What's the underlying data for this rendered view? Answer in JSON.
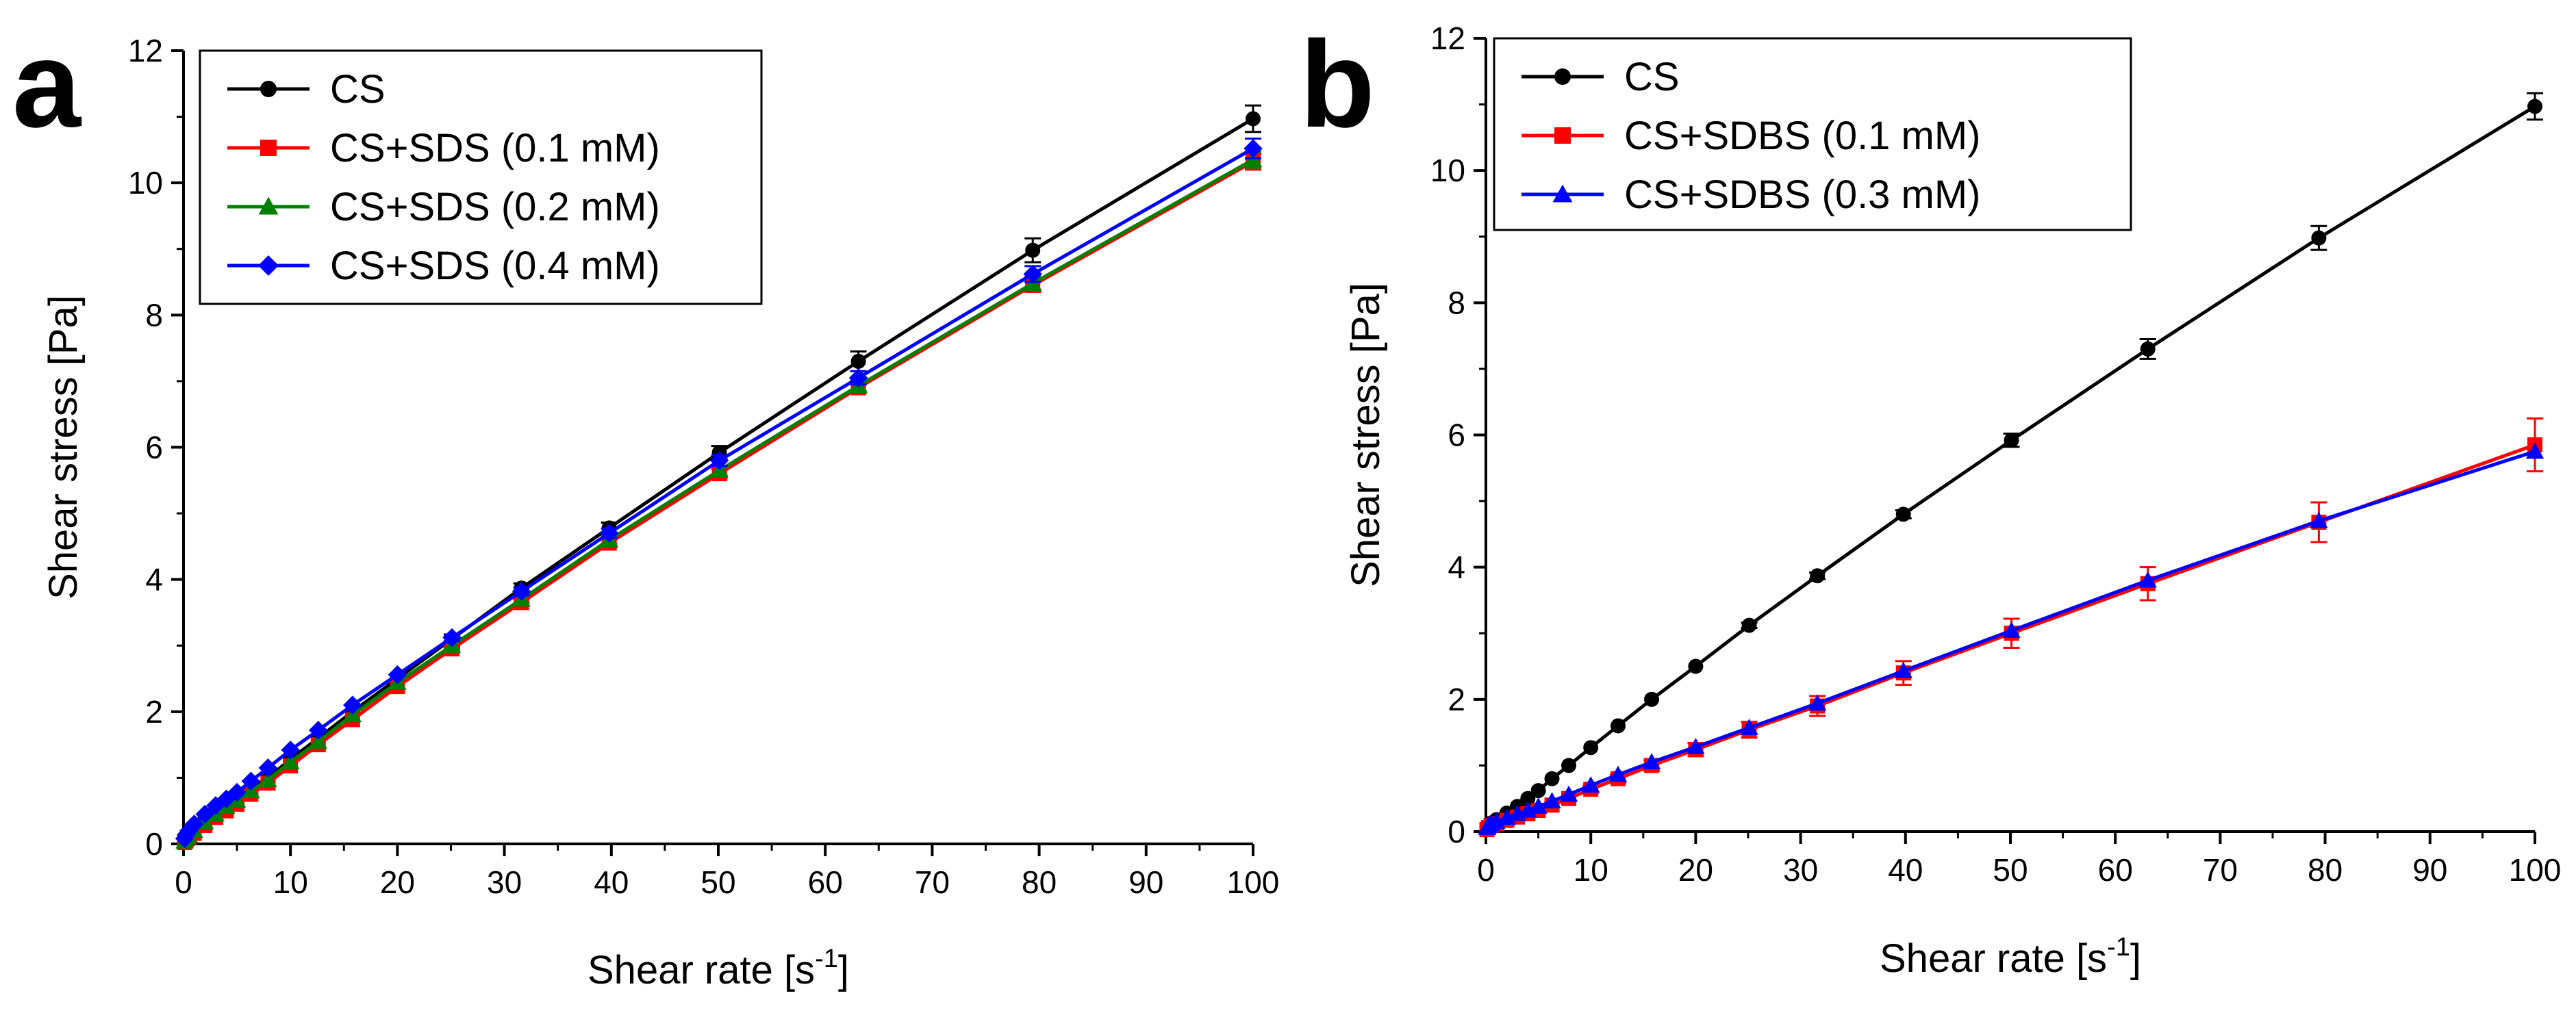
{
  "chart_data": [
    {
      "panel": "a",
      "type": "line",
      "title": "",
      "xlabel": "Shear rate [s",
      "xlabel_sup": "-1",
      "xlabel_end": "]",
      "ylabel": "Shear stress [Pa]",
      "xlim": [
        0,
        100
      ],
      "ylim": [
        0,
        12
      ],
      "xticks": [
        0,
        10,
        20,
        30,
        40,
        50,
        60,
        70,
        80,
        90,
        100
      ],
      "yticks": [
        0,
        2,
        4,
        6,
        8,
        10,
        12
      ],
      "legend_position": "top-left",
      "x": [
        0.1,
        0.16,
        0.25,
        0.4,
        0.63,
        1.0,
        1.58,
        2.51,
        3.98,
        6.31,
        10,
        15.8,
        25.1,
        39.8,
        50,
        63.1,
        79.4,
        100
      ],
      "series": [
        {
          "name": "CS",
          "color": "#000000",
          "marker": "circle",
          "x": [
            0.1,
            0.25,
            0.5,
            1,
            2,
            3,
            4,
            5,
            6.3,
            7.9,
            10,
            12.6,
            15.8,
            20,
            25.1,
            31.6,
            39.8,
            50.1,
            63.1,
            79.4,
            100
          ],
          "values": [
            0.05,
            0.1,
            0.16,
            0.24,
            0.38,
            0.5,
            0.6,
            0.7,
            0.85,
            1.0,
            1.28,
            1.6,
            2.0,
            2.5,
            3.1,
            3.87,
            4.78,
            5.92,
            7.3,
            8.98,
            10.97
          ],
          "errors": [
            0,
            0,
            0,
            0,
            0,
            0,
            0,
            0,
            0,
            0,
            0,
            0,
            0,
            0,
            0.05,
            0.07,
            0.08,
            0.1,
            0.15,
            0.18,
            0.2
          ]
        },
        {
          "name": "CS+SDS (0.1 mM)",
          "color": "#ff0000",
          "marker": "square",
          "x": [
            0.1,
            0.25,
            0.5,
            1,
            2,
            3,
            4,
            5,
            6.3,
            7.9,
            10,
            12.6,
            15.8,
            20,
            25.1,
            31.6,
            39.8,
            50.1,
            63.1,
            79.4,
            100
          ],
          "values": [
            0.02,
            0.06,
            0.1,
            0.16,
            0.28,
            0.4,
            0.5,
            0.6,
            0.75,
            0.92,
            1.18,
            1.5,
            1.88,
            2.38,
            2.95,
            3.65,
            4.55,
            5.6,
            6.9,
            8.45,
            10.32
          ],
          "errors": [
            0,
            0,
            0,
            0,
            0,
            0,
            0,
            0,
            0,
            0,
            0,
            0,
            0,
            0,
            0.04,
            0.05,
            0.06,
            0.07,
            0.08,
            0.1,
            0.12
          ]
        },
        {
          "name": "CS+SDS (0.2 mM)",
          "color": "#008000",
          "marker": "triangle",
          "x": [
            0.1,
            0.25,
            0.5,
            1,
            2,
            3,
            4,
            5,
            6.3,
            7.9,
            10,
            12.6,
            15.8,
            20,
            25.1,
            31.6,
            39.8,
            50.1,
            63.1,
            79.4,
            100
          ],
          "values": [
            0.04,
            0.08,
            0.13,
            0.2,
            0.33,
            0.45,
            0.56,
            0.66,
            0.8,
            0.97,
            1.24,
            1.55,
            1.95,
            2.44,
            3.0,
            3.7,
            4.6,
            5.65,
            6.93,
            8.48,
            10.35
          ],
          "errors": [
            0,
            0,
            0,
            0,
            0,
            0,
            0,
            0,
            0,
            0,
            0,
            0,
            0,
            0,
            0.04,
            0.05,
            0.06,
            0.07,
            0.08,
            0.1,
            0.12
          ]
        },
        {
          "name": "CS+SDS (0.4 mM)",
          "color": "#0000ff",
          "marker": "diamond",
          "x": [
            0.1,
            0.25,
            0.5,
            1,
            2,
            3,
            4,
            5,
            6.3,
            7.9,
            10,
            12.6,
            15.8,
            20,
            25.1,
            31.6,
            39.8,
            50.1,
            63.1,
            79.4,
            100
          ],
          "values": [
            0.08,
            0.14,
            0.2,
            0.3,
            0.45,
            0.58,
            0.68,
            0.78,
            0.95,
            1.15,
            1.42,
            1.72,
            2.1,
            2.56,
            3.12,
            3.82,
            4.7,
            5.8,
            7.05,
            8.62,
            10.52
          ],
          "errors": [
            0,
            0,
            0,
            0,
            0,
            0,
            0,
            0,
            0,
            0,
            0,
            0,
            0,
            0,
            0.05,
            0.06,
            0.07,
            0.08,
            0.1,
            0.12,
            0.15
          ]
        }
      ]
    },
    {
      "panel": "b",
      "type": "line",
      "title": "",
      "xlabel": "Shear rate [s",
      "xlabel_sup": "-1",
      "xlabel_end": "]",
      "ylabel": "Shear stress [Pa]",
      "xlim": [
        0,
        100
      ],
      "ylim": [
        0,
        12
      ],
      "xticks": [
        0,
        10,
        20,
        30,
        40,
        50,
        60,
        70,
        80,
        90,
        100
      ],
      "yticks": [
        0,
        2,
        4,
        6,
        8,
        10,
        12
      ],
      "legend_position": "top-left",
      "series": [
        {
          "name": "CS",
          "color": "#000000",
          "marker": "circle",
          "x": [
            0.1,
            0.25,
            0.5,
            1,
            2,
            3,
            4,
            5,
            6.3,
            7.9,
            10,
            12.6,
            15.8,
            20,
            25.1,
            31.6,
            39.8,
            50.1,
            63.1,
            79.4,
            100
          ],
          "values": [
            0.04,
            0.08,
            0.13,
            0.18,
            0.28,
            0.38,
            0.5,
            0.62,
            0.8,
            1.0,
            1.27,
            1.6,
            2.0,
            2.5,
            3.12,
            3.87,
            4.8,
            5.92,
            7.3,
            8.98,
            10.97
          ],
          "errors": [
            0,
            0,
            0,
            0,
            0,
            0,
            0,
            0,
            0,
            0,
            0,
            0,
            0,
            0,
            0.04,
            0.05,
            0.06,
            0.1,
            0.15,
            0.18,
            0.2
          ]
        },
        {
          "name": "CS+SDBS (0.1 mM)",
          "color": "#ff0000",
          "marker": "square",
          "x": [
            0.1,
            0.25,
            0.5,
            1,
            2,
            3,
            4,
            5,
            6.3,
            7.9,
            10,
            12.6,
            15.8,
            20,
            25.1,
            31.6,
            39.8,
            50.1,
            63.1,
            79.4,
            100
          ],
          "values": [
            0.03,
            0.06,
            0.09,
            0.12,
            0.17,
            0.22,
            0.27,
            0.32,
            0.4,
            0.5,
            0.64,
            0.8,
            1.0,
            1.24,
            1.54,
            1.9,
            2.4,
            3.0,
            3.75,
            4.68,
            5.85
          ],
          "errors": [
            0,
            0,
            0,
            0,
            0,
            0,
            0,
            0,
            0,
            0,
            0.05,
            0.06,
            0.08,
            0.1,
            0.12,
            0.15,
            0.18,
            0.22,
            0.25,
            0.3,
            0.4
          ]
        },
        {
          "name": "CS+SDBS (0.3 mM)",
          "color": "#0000ff",
          "marker": "triangle",
          "x": [
            0.1,
            0.25,
            0.5,
            1,
            2,
            3,
            4,
            5,
            6.3,
            7.9,
            10,
            12.6,
            15.8,
            20,
            25.1,
            31.6,
            39.8,
            50.1,
            63.1,
            79.4,
            100
          ],
          "values": [
            0.06,
            0.09,
            0.12,
            0.15,
            0.21,
            0.27,
            0.32,
            0.38,
            0.46,
            0.56,
            0.7,
            0.86,
            1.05,
            1.28,
            1.57,
            1.94,
            2.43,
            3.04,
            3.8,
            4.7,
            5.75
          ],
          "errors": [
            0,
            0,
            0,
            0,
            0,
            0,
            0,
            0,
            0,
            0,
            0,
            0,
            0,
            0,
            0,
            0,
            0,
            0,
            0,
            0,
            0
          ]
        }
      ]
    }
  ]
}
